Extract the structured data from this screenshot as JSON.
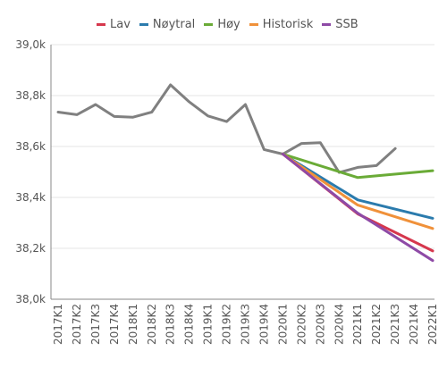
{
  "chart_data": {
    "type": "line",
    "x": [
      "2017K1",
      "2017K2",
      "2017K3",
      "2017K4",
      "2018K1",
      "2018K2",
      "2018K3",
      "2018K4",
      "2019K1",
      "2019K2",
      "2019K3",
      "2019K4",
      "2020K1",
      "2020K2",
      "2020K3",
      "2020K4",
      "2021K1",
      "2021K2",
      "2021K3",
      "2021K4",
      "2022K1"
    ],
    "xticks": [
      "2017K1",
      "2017K2",
      "2017K3",
      "2017K4",
      "2018K1",
      "2018K2",
      "2018K3",
      "2018K4",
      "2019K1",
      "2019K2",
      "2019K3",
      "2019K4",
      "2020K1",
      "2020K2",
      "2020K3",
      "2020K4",
      "2021K1",
      "2021K2",
      "2021K3",
      "2021K4",
      "2022K1"
    ],
    "ylim": [
      38.0,
      39.0
    ],
    "yticks": [
      "38,0k",
      "38,2k",
      "38,4k",
      "38,6k",
      "38,8k",
      "39,0k"
    ],
    "ytick_values": [
      38.0,
      38.2,
      38.4,
      38.6,
      38.8,
      39.0
    ],
    "grid": true,
    "legend_position": "top",
    "series": [
      {
        "name": "",
        "color": "#808080",
        "legend": false,
        "values": [
          38.735,
          38.725,
          38.765,
          38.718,
          38.715,
          38.735,
          38.842,
          38.775,
          38.72,
          38.698,
          38.765,
          38.588,
          38.57,
          38.612,
          38.615,
          38.498,
          38.518,
          38.525,
          38.592,
          null,
          null
        ]
      },
      {
        "name": "Lav",
        "color": "#d6374d",
        "legend": true,
        "values": [
          null,
          null,
          null,
          null,
          null,
          null,
          null,
          null,
          null,
          null,
          null,
          null,
          38.57,
          null,
          null,
          null,
          38.335,
          null,
          null,
          null,
          38.19
        ]
      },
      {
        "name": "Nøytral",
        "color": "#2b7bad",
        "legend": true,
        "values": [
          null,
          null,
          null,
          null,
          null,
          null,
          null,
          null,
          null,
          null,
          null,
          null,
          38.57,
          null,
          null,
          null,
          38.39,
          null,
          null,
          null,
          38.318
        ]
      },
      {
        "name": "Høy",
        "color": "#6aab37",
        "legend": true,
        "values": [
          null,
          null,
          null,
          null,
          null,
          null,
          null,
          null,
          null,
          null,
          null,
          null,
          38.57,
          null,
          null,
          null,
          38.478,
          null,
          null,
          null,
          38.505
        ]
      },
      {
        "name": "Historisk",
        "color": "#f0913a",
        "legend": true,
        "values": [
          null,
          null,
          null,
          null,
          null,
          null,
          null,
          null,
          null,
          null,
          null,
          null,
          38.57,
          null,
          null,
          null,
          38.37,
          null,
          null,
          null,
          38.278
        ]
      },
      {
        "name": "SSB",
        "color": "#8e4aa6",
        "legend": true,
        "values": [
          null,
          null,
          null,
          null,
          null,
          null,
          null,
          null,
          null,
          null,
          null,
          null,
          38.57,
          null,
          null,
          null,
          38.338,
          null,
          null,
          null,
          38.152
        ]
      }
    ]
  }
}
